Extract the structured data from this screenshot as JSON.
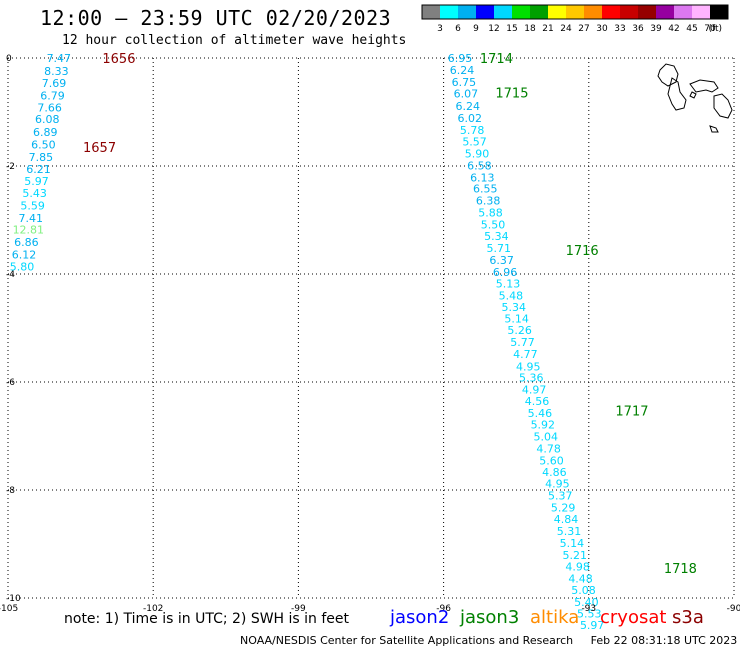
{
  "header": {
    "title": "12:00 — 23:59 UTC 02/20/2023",
    "subtitle": "12 hour collection of altimeter wave heights"
  },
  "colorbar": {
    "labels": [
      "3",
      "6",
      "9",
      "12",
      "15",
      "18",
      "21",
      "24",
      "27",
      "30",
      "33",
      "36",
      "39",
      "42",
      "45",
      "70"
    ],
    "unit": "(ft)",
    "colors": [
      "#808080",
      "#00ffff",
      "#00b0f0",
      "#0000ff",
      "#00d8ff",
      "#00e000",
      "#00a000",
      "#ffff00",
      "#ffc800",
      "#ff8c00",
      "#ff0000",
      "#c80000",
      "#960000",
      "#9600a0",
      "#dc78f0",
      "#ffb4ff",
      "#000000"
    ]
  },
  "footer": {
    "note": "note:  1) Time is in UTC;  2) SWH is in feet",
    "satellites": [
      {
        "name": "jason2",
        "color": "#0000ff"
      },
      {
        "name": "jason3",
        "color": "#008000"
      },
      {
        "name": "altika",
        "color": "#ff8c00"
      },
      {
        "name": "cryosat",
        "color": "#ff0000"
      },
      {
        "name": "s3a",
        "color": "#8b0000"
      }
    ],
    "credit": "NOAA/NESDIS Center for Satellite Applications and Research     Feb 22 08:31:18 UTC 2023"
  },
  "chart_data": {
    "type": "scatter",
    "title": "12:00 — 23:59 UTC 02/20/2023",
    "xlim": [
      -105,
      -90
    ],
    "ylim": [
      -10,
      0
    ],
    "xticks": [
      -105,
      -102,
      -99,
      -96,
      -93,
      -90
    ],
    "yticks": [
      0,
      -2,
      -4,
      -6,
      -8,
      -10
    ],
    "xtick_labels": [
      "-105",
      "-102",
      "-99",
      "-96",
      "-93",
      "-90"
    ],
    "ytick_labels": [
      "0",
      "-2",
      "-4",
      "-6",
      "-8",
      "-10"
    ],
    "grid": true,
    "tracks": [
      {
        "labels": [
          {
            "text": "1656",
            "color": "#8b0000",
            "x": -103.05,
            "y": 0.0
          },
          {
            "text": "1657",
            "color": "#8b0000",
            "x": -103.45,
            "y": -1.65
          }
        ],
        "points": [
          {
            "x": -103.95,
            "y": 0.0,
            "v": "7.47",
            "c": "#00b0f0"
          },
          {
            "x": -104.0,
            "y": -0.24,
            "v": "8.33",
            "c": "#00b0f0"
          },
          {
            "x": -104.05,
            "y": -0.46,
            "v": "7.69",
            "c": "#00b0f0"
          },
          {
            "x": -104.08,
            "y": -0.69,
            "v": "6.79",
            "c": "#00b0f0"
          },
          {
            "x": -104.14,
            "y": -0.92,
            "v": "7.66",
            "c": "#00b0f0"
          },
          {
            "x": -104.19,
            "y": -1.13,
            "v": "6.08",
            "c": "#00b0f0"
          },
          {
            "x": -104.23,
            "y": -1.37,
            "v": "6.89",
            "c": "#00b0f0"
          },
          {
            "x": -104.27,
            "y": -1.6,
            "v": "6.50",
            "c": "#00b0f0"
          },
          {
            "x": -104.32,
            "y": -1.83,
            "v": "7.85",
            "c": "#00b0f0"
          },
          {
            "x": -104.37,
            "y": -2.06,
            "v": "6.21",
            "c": "#00b0f0"
          },
          {
            "x": -104.41,
            "y": -2.28,
            "v": "5.97",
            "c": "#00d8ff"
          },
          {
            "x": -104.45,
            "y": -2.5,
            "v": "5.43",
            "c": "#00d8ff"
          },
          {
            "x": -104.49,
            "y": -2.73,
            "v": "5.59",
            "c": "#00d8ff"
          },
          {
            "x": -104.53,
            "y": -2.96,
            "v": "7.41",
            "c": "#00b0f0"
          },
          {
            "x": -104.58,
            "y": -3.18,
            "v": "12.81",
            "c": "#80f080"
          },
          {
            "x": -104.62,
            "y": -3.41,
            "v": "6.86",
            "c": "#00b0f0"
          },
          {
            "x": -104.67,
            "y": -3.64,
            "v": "6.12",
            "c": "#00b0f0"
          },
          {
            "x": -104.71,
            "y": -3.86,
            "v": "5.80",
            "c": "#00d8ff"
          }
        ]
      },
      {
        "labels": [
          {
            "text": "1714",
            "color": "#008000",
            "x": -95.25,
            "y": 0.0
          },
          {
            "text": "1715",
            "color": "#008000",
            "x": -94.93,
            "y": -0.64
          },
          {
            "text": "1716",
            "color": "#008000",
            "x": -93.48,
            "y": -3.56
          },
          {
            "text": "1717",
            "color": "#008000",
            "x": -92.45,
            "y": -6.53
          },
          {
            "text": "1718",
            "color": "#008000",
            "x": -91.45,
            "y": -9.44
          }
        ],
        "points": [
          {
            "x": -95.66,
            "y": 0.0,
            "v": "6.95",
            "c": "#00b0f0"
          },
          {
            "x": -95.62,
            "y": -0.22,
            "v": "6.24",
            "c": "#00b0f0"
          },
          {
            "x": -95.58,
            "y": -0.44,
            "v": "6.75",
            "c": "#00b0f0"
          },
          {
            "x": -95.54,
            "y": -0.66,
            "v": "6.07",
            "c": "#00b0f0"
          },
          {
            "x": -95.5,
            "y": -0.89,
            "v": "6.24",
            "c": "#00b0f0"
          },
          {
            "x": -95.46,
            "y": -1.11,
            "v": "6.02",
            "c": "#00b0f0"
          },
          {
            "x": -95.41,
            "y": -1.33,
            "v": "5.78",
            "c": "#00d8ff"
          },
          {
            "x": -95.36,
            "y": -1.55,
            "v": "5.57",
            "c": "#00d8ff"
          },
          {
            "x": -95.31,
            "y": -1.77,
            "v": "5.90",
            "c": "#00d8ff"
          },
          {
            "x": -95.26,
            "y": -1.99,
            "v": "6.58",
            "c": "#00b0f0"
          },
          {
            "x": -95.2,
            "y": -2.21,
            "v": "6.13",
            "c": "#00b0f0"
          },
          {
            "x": -95.14,
            "y": -2.42,
            "v": "6.55",
            "c": "#00b0f0"
          },
          {
            "x": -95.08,
            "y": -2.64,
            "v": "6.38",
            "c": "#00b0f0"
          },
          {
            "x": -95.03,
            "y": -2.86,
            "v": "5.88",
            "c": "#00d8ff"
          },
          {
            "x": -94.98,
            "y": -3.08,
            "v": "5.50",
            "c": "#00d8ff"
          },
          {
            "x": -94.91,
            "y": -3.3,
            "v": "5.34",
            "c": "#00d8ff"
          },
          {
            "x": -94.86,
            "y": -3.52,
            "v": "5.71",
            "c": "#00d8ff"
          },
          {
            "x": -94.8,
            "y": -3.74,
            "v": "6.37",
            "c": "#00b0f0"
          },
          {
            "x": -94.73,
            "y": -3.96,
            "v": "6.96",
            "c": "#00b0f0"
          },
          {
            "x": -94.67,
            "y": -4.18,
            "v": "5.13",
            "c": "#00d8ff"
          },
          {
            "x": -94.61,
            "y": -4.4,
            "v": "5.48",
            "c": "#00d8ff"
          },
          {
            "x": -94.55,
            "y": -4.61,
            "v": "5.34",
            "c": "#00d8ff"
          },
          {
            "x": -94.49,
            "y": -4.82,
            "v": "5.14",
            "c": "#00d8ff"
          },
          {
            "x": -94.43,
            "y": -5.04,
            "v": "5.26",
            "c": "#00d8ff"
          },
          {
            "x": -94.37,
            "y": -5.26,
            "v": "5.77",
            "c": "#00d8ff"
          },
          {
            "x": -94.31,
            "y": -5.48,
            "v": "4.77",
            "c": "#00d8ff"
          },
          {
            "x": -94.25,
            "y": -5.71,
            "v": "4.95",
            "c": "#00d8ff"
          },
          {
            "x": -94.19,
            "y": -5.92,
            "v": "5.36",
            "c": "#00d8ff"
          },
          {
            "x": -94.13,
            "y": -6.14,
            "v": "4.97",
            "c": "#00d8ff"
          },
          {
            "x": -94.07,
            "y": -6.35,
            "v": "4.56",
            "c": "#00d8ff"
          },
          {
            "x": -94.01,
            "y": -6.57,
            "v": "5.46",
            "c": "#00d8ff"
          },
          {
            "x": -93.95,
            "y": -6.79,
            "v": "5.92",
            "c": "#00d8ff"
          },
          {
            "x": -93.89,
            "y": -7.01,
            "v": "5.04",
            "c": "#00d8ff"
          },
          {
            "x": -93.83,
            "y": -7.23,
            "v": "4.78",
            "c": "#00d8ff"
          },
          {
            "x": -93.77,
            "y": -7.45,
            "v": "5.60",
            "c": "#00d8ff"
          },
          {
            "x": -93.71,
            "y": -7.67,
            "v": "4.86",
            "c": "#00d8ff"
          },
          {
            "x": -93.65,
            "y": -7.88,
            "v": "4.95",
            "c": "#00d8ff"
          },
          {
            "x": -93.59,
            "y": -8.1,
            "v": "5.37",
            "c": "#00d8ff"
          },
          {
            "x": -93.53,
            "y": -8.32,
            "v": "5.29",
            "c": "#00d8ff"
          },
          {
            "x": -93.47,
            "y": -8.54,
            "v": "4.84",
            "c": "#00d8ff"
          },
          {
            "x": -93.41,
            "y": -8.76,
            "v": "5.31",
            "c": "#00d8ff"
          },
          {
            "x": -93.35,
            "y": -8.98,
            "v": "5.14",
            "c": "#00d8ff"
          },
          {
            "x": -93.29,
            "y": -9.2,
            "v": "5.21",
            "c": "#00d8ff"
          },
          {
            "x": -93.23,
            "y": -9.42,
            "v": "4.98",
            "c": "#00d8ff"
          },
          {
            "x": -93.17,
            "y": -9.64,
            "v": "4.48",
            "c": "#00d8ff"
          },
          {
            "x": -93.11,
            "y": -9.85,
            "v": "5.08",
            "c": "#00d8ff"
          },
          {
            "x": -93.05,
            "y": -10.07,
            "v": "5.40",
            "c": "#00d8ff"
          },
          {
            "x": -92.99,
            "y": -10.29,
            "v": "5.53",
            "c": "#00d8ff"
          },
          {
            "x": -92.93,
            "y": -10.5,
            "v": "5.97",
            "c": "#00d8ff"
          }
        ]
      }
    ]
  }
}
